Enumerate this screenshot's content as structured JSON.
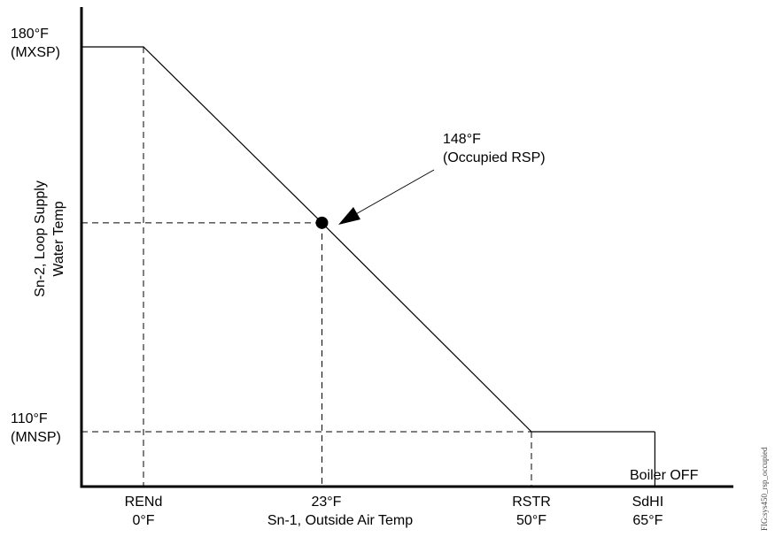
{
  "chart_data": {
    "type": "line",
    "ylabel_lines": [
      "Sn-2, Loop Supply",
      "Water Temp"
    ],
    "xlabel": "Sn-1, Outside Air Temp",
    "series": [
      {
        "x": [
          -10,
          0,
          23,
          50,
          65
        ],
        "y": [
          180,
          180,
          148,
          110,
          110
        ]
      }
    ],
    "y_ticks": [
      {
        "value": 180,
        "lines": [
          "180°F",
          "(MXSP)"
        ]
      },
      {
        "value": 110,
        "lines": [
          "110°F",
          "(MNSP)"
        ]
      }
    ],
    "x_ticks": [
      {
        "value": 0,
        "lines": [
          "RENd",
          "0°F"
        ]
      },
      {
        "value": 23,
        "lines": [
          "23°F"
        ]
      },
      {
        "value": 50,
        "lines": [
          "RSTR",
          "50°F"
        ]
      },
      {
        "value": 65,
        "lines": [
          "SdHI",
          "65°F"
        ]
      }
    ],
    "point": {
      "x": 23,
      "y": 148,
      "lines": [
        "148°F",
        "(Occupied RSP)"
      ]
    },
    "annotation": {
      "text": "Boiler OFF",
      "x": 65
    },
    "figure_id": "FIG:sys450_rsp_occupied"
  }
}
